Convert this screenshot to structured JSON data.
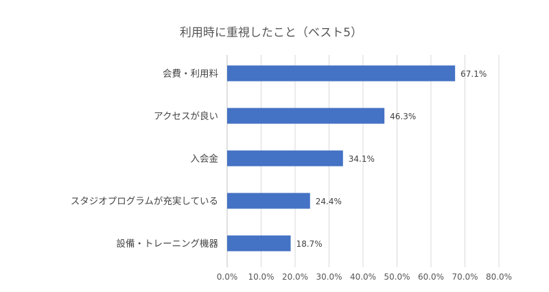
{
  "chart_data": {
    "type": "bar",
    "orientation": "horizontal",
    "title": "利用時に重視したこと（ベスト5）",
    "categories": [
      "会費・利用料",
      "アクセスが良い",
      "入会金",
      "スタジオプログラムが充実している",
      "設備・トレーニング機器"
    ],
    "values": [
      67.1,
      46.3,
      34.1,
      24.4,
      18.7
    ],
    "data_labels": [
      "67.1%",
      "46.3%",
      "34.1%",
      "24.4%",
      "18.7%"
    ],
    "xlim": [
      0,
      80
    ],
    "ticks": [
      0,
      10,
      20,
      30,
      40,
      50,
      60,
      70,
      80
    ],
    "tick_labels": [
      "0.0%",
      "10.0%",
      "20.0%",
      "30.0%",
      "40.0%",
      "50.0%",
      "60.0%",
      "70.0%",
      "80.0%"
    ],
    "grid": true,
    "legend": "none",
    "bar_color": "#4472C4"
  }
}
